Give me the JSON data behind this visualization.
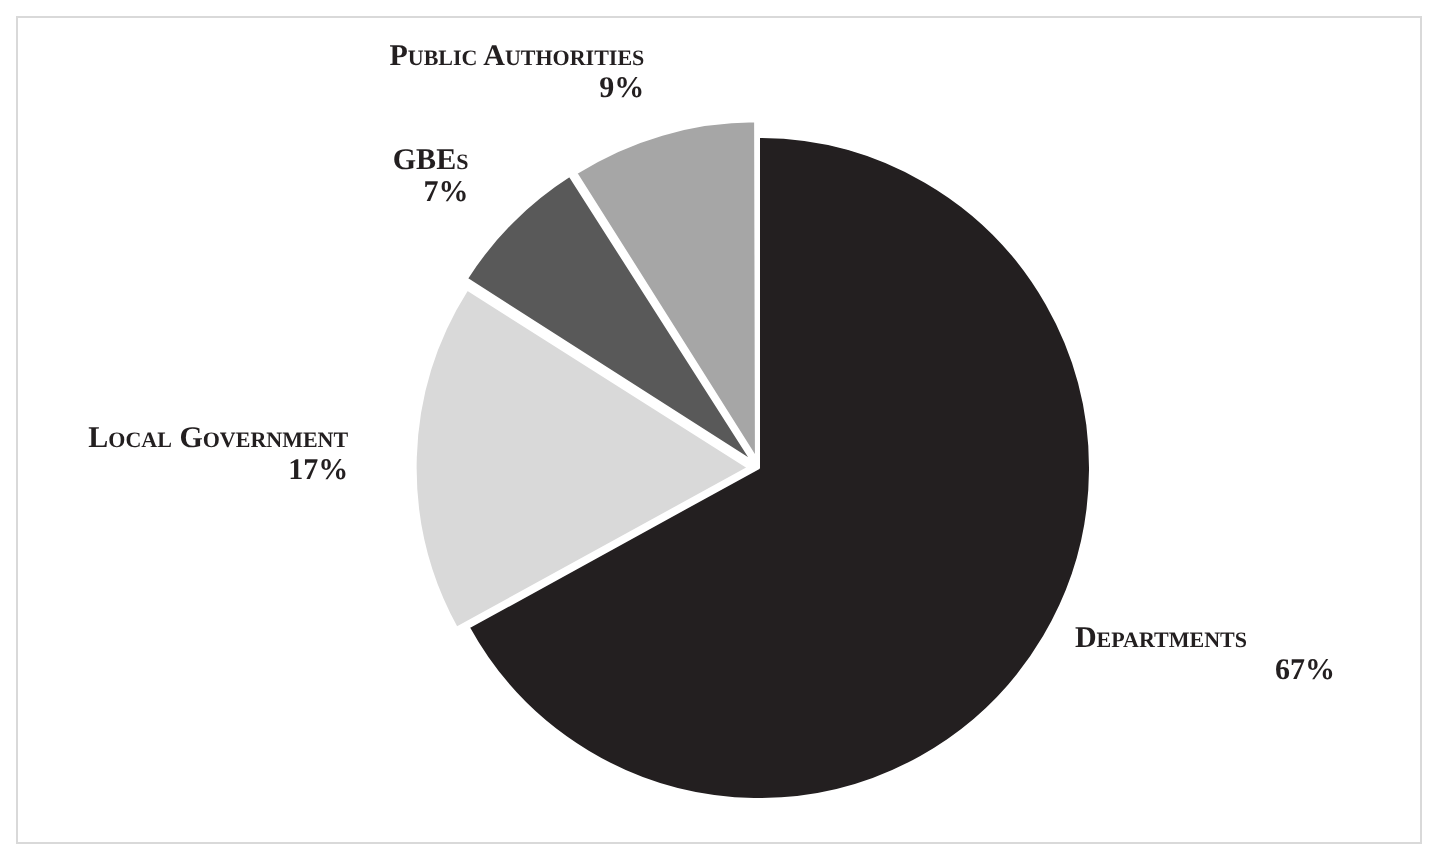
{
  "chart_data": {
    "type": "pie",
    "categories": [
      "Departments",
      "Local Government",
      "GBEs",
      "Public Authorities"
    ],
    "values": [
      67,
      17,
      7,
      9
    ],
    "value_labels": [
      "67%",
      "17%",
      "7%",
      "9%"
    ],
    "colors": [
      "#231f20",
      "#d9d9d9",
      "#595959",
      "#a6a6a6"
    ],
    "legend": false
  }
}
